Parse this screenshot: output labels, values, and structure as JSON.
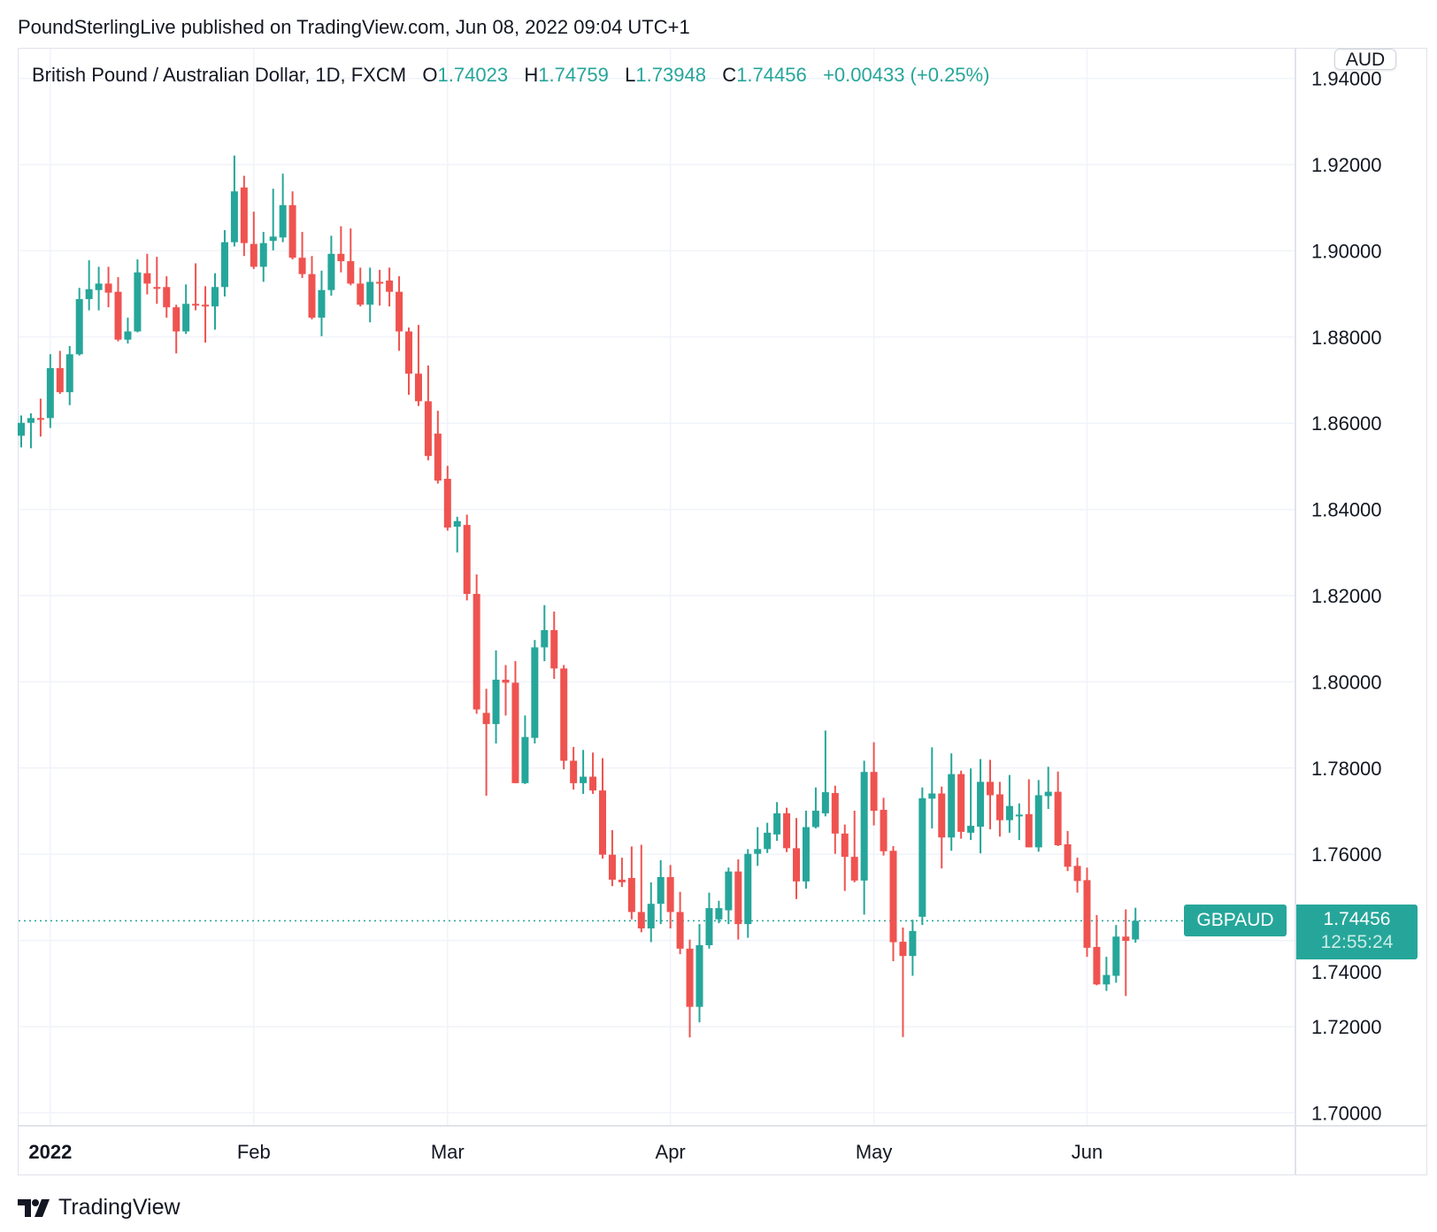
{
  "publisher_line": "PoundSterlingLive published on TradingView.com, Jun 08, 2022 09:04 UTC+1",
  "legend": {
    "title": "British Pound / Australian Dollar, 1D, FXCM",
    "o_label": "O",
    "o_value": "1.74023",
    "h_label": "H",
    "h_value": "1.74759",
    "l_label": "L",
    "l_value": "1.73948",
    "c_label": "C",
    "c_value": "1.74456",
    "change": "+0.00433 (+0.25%)"
  },
  "currency_button": "AUD",
  "symbol_label": "GBPAUD",
  "last_price": "1.74456",
  "countdown": "12:55:24",
  "watermark": "TradingView",
  "colors": {
    "up": "#26a69a",
    "down": "#ef5350",
    "grid": "#f0f3fa",
    "axis_text": "#131722"
  },
  "chart_data": {
    "type": "candlestick",
    "title": "British Pound / Australian Dollar, 1D, FXCM",
    "ylabel": "AUD",
    "ylim": [
      1.695,
      1.94
    ],
    "yticks": [
      "1.94000",
      "1.92000",
      "1.90000",
      "1.88000",
      "1.86000",
      "1.84000",
      "1.82000",
      "1.80000",
      "1.78000",
      "1.76000",
      "1.74000",
      "1.72000",
      "1.70000"
    ],
    "grid": true,
    "last_close": 1.74456,
    "xticks": [
      {
        "index": 3,
        "label": "2022",
        "bold": true
      },
      {
        "index": 24,
        "label": "Feb"
      },
      {
        "index": 44,
        "label": "Mar"
      },
      {
        "index": 67,
        "label": "Apr"
      },
      {
        "index": 88,
        "label": "May"
      },
      {
        "index": 110,
        "label": "Jun"
      }
    ],
    "ohlc_fields": [
      "open",
      "high",
      "low",
      "close"
    ],
    "candles": [
      [
        1.8571,
        1.8618,
        1.8544,
        1.8601
      ],
      [
        1.8601,
        1.8623,
        1.8542,
        1.8612
      ],
      [
        1.8612,
        1.8657,
        1.8569,
        1.861
      ],
      [
        1.8612,
        1.876,
        1.8589,
        1.8728
      ],
      [
        1.8728,
        1.8768,
        1.8668,
        1.8672
      ],
      [
        1.8672,
        1.8779,
        1.8642,
        1.876
      ],
      [
        1.876,
        1.8914,
        1.8757,
        1.8888
      ],
      [
        1.8888,
        1.8978,
        1.8862,
        1.8911
      ],
      [
        1.8909,
        1.8963,
        1.8862,
        1.8924
      ],
      [
        1.8924,
        1.8963,
        1.8869,
        1.8903
      ],
      [
        1.8905,
        1.8939,
        1.879,
        1.8794
      ],
      [
        1.8794,
        1.8845,
        1.8785,
        1.8813
      ],
      [
        1.8813,
        1.898,
        1.8811,
        1.895
      ],
      [
        1.8948,
        1.8993,
        1.8899,
        1.8924
      ],
      [
        1.8916,
        1.8986,
        1.8877,
        1.8914
      ],
      [
        1.8916,
        1.8941,
        1.8845,
        1.8869
      ],
      [
        1.8869,
        1.8875,
        1.8762,
        1.8813
      ],
      [
        1.8813,
        1.8922,
        1.8807,
        1.8877
      ],
      [
        1.8877,
        1.8971,
        1.8862,
        1.8875
      ],
      [
        1.8875,
        1.8918,
        1.8787,
        1.8871
      ],
      [
        1.8871,
        1.8948,
        1.8817,
        1.8916
      ],
      [
        1.8916,
        1.9048,
        1.8894,
        1.902
      ],
      [
        1.902,
        1.9221,
        1.901,
        1.9138
      ],
      [
        1.9147,
        1.9174,
        1.8988,
        1.9018
      ],
      [
        1.9016,
        1.9091,
        1.8958,
        1.8963
      ],
      [
        1.8963,
        1.9044,
        1.8928,
        1.9018
      ],
      [
        1.9023,
        1.9144,
        1.9001,
        1.9033
      ],
      [
        1.9031,
        1.9179,
        1.902,
        1.9106
      ],
      [
        1.9106,
        1.9138,
        1.898,
        1.8984
      ],
      [
        1.8984,
        1.9044,
        1.8937,
        1.8946
      ],
      [
        1.8946,
        1.8988,
        1.8841,
        1.8845
      ],
      [
        1.8845,
        1.8954,
        1.8802,
        1.8909
      ],
      [
        1.8909,
        1.9035,
        1.8896,
        1.8993
      ],
      [
        1.8993,
        1.9057,
        1.895,
        1.8976
      ],
      [
        1.8976,
        1.9052,
        1.892,
        1.8924
      ],
      [
        1.8924,
        1.8961,
        1.8871,
        1.8875
      ],
      [
        1.8875,
        1.8961,
        1.8834,
        1.8928
      ],
      [
        1.8928,
        1.8956,
        1.8873,
        1.8924
      ],
      [
        1.8931,
        1.8961,
        1.8871,
        1.8905
      ],
      [
        1.8905,
        1.8941,
        1.8768,
        1.8813
      ],
      [
        1.8813,
        1.8822,
        1.8666,
        1.8715
      ],
      [
        1.8715,
        1.8828,
        1.864,
        1.8651
      ],
      [
        1.8651,
        1.8734,
        1.8514,
        1.8524
      ],
      [
        1.8576,
        1.8629,
        1.846,
        1.8467
      ],
      [
        1.8471,
        1.8501,
        1.8351,
        1.8358
      ],
      [
        1.836,
        1.8383,
        1.83,
        1.8373
      ],
      [
        1.8364,
        1.8388,
        1.8189,
        1.8204
      ],
      [
        1.8204,
        1.8249,
        1.7926,
        1.7936
      ],
      [
        1.7928,
        1.7984,
        1.7736,
        1.7902
      ],
      [
        1.7902,
        1.8073,
        1.7857,
        1.8005
      ],
      [
        1.8005,
        1.8039,
        1.7922,
        1.7998
      ],
      [
        1.7998,
        1.8048,
        1.7765,
        1.7765
      ],
      [
        1.7765,
        1.7922,
        1.7763,
        1.7872
      ],
      [
        1.787,
        1.8097,
        1.7857,
        1.808
      ],
      [
        1.808,
        1.8178,
        1.8048,
        1.812
      ],
      [
        1.812,
        1.8163,
        1.8007,
        1.8031
      ],
      [
        1.8031,
        1.8039,
        1.7797,
        1.7817
      ],
      [
        1.7817,
        1.7849,
        1.775,
        1.7765
      ],
      [
        1.7765,
        1.7842,
        1.774,
        1.778
      ],
      [
        1.778,
        1.7836,
        1.774,
        1.7748
      ],
      [
        1.7748,
        1.7823,
        1.759,
        1.7599
      ],
      [
        1.7599,
        1.7656,
        1.7526,
        1.7541
      ],
      [
        1.7541,
        1.7592,
        1.7524,
        1.7535
      ],
      [
        1.7545,
        1.7618,
        1.7449,
        1.7466
      ],
      [
        1.7466,
        1.7622,
        1.7419,
        1.7428
      ],
      [
        1.7428,
        1.7535,
        1.7396,
        1.7485
      ],
      [
        1.7485,
        1.7586,
        1.7438,
        1.7547
      ],
      [
        1.7547,
        1.7575,
        1.7428,
        1.7466
      ],
      [
        1.7466,
        1.7513,
        1.7368,
        1.7381
      ],
      [
        1.7381,
        1.7402,
        1.7175,
        1.7246
      ],
      [
        1.7246,
        1.7438,
        1.721,
        1.7389
      ],
      [
        1.7389,
        1.7511,
        1.7381,
        1.7475
      ],
      [
        1.7449,
        1.7492,
        1.744,
        1.7475
      ],
      [
        1.747,
        1.7569,
        1.7438,
        1.756
      ],
      [
        1.756,
        1.7588,
        1.7402,
        1.7438
      ],
      [
        1.7438,
        1.7612,
        1.7406,
        1.7601
      ],
      [
        1.7601,
        1.7663,
        1.7573,
        1.7612
      ],
      [
        1.7612,
        1.7673,
        1.7603,
        1.765
      ],
      [
        1.7646,
        1.7721,
        1.7631,
        1.7695
      ],
      [
        1.7695,
        1.7708,
        1.7605,
        1.7614
      ],
      [
        1.7614,
        1.7684,
        1.7496,
        1.7537
      ],
      [
        1.7537,
        1.7701,
        1.752,
        1.7663
      ],
      [
        1.7663,
        1.7755,
        1.766,
        1.7701
      ],
      [
        1.7695,
        1.7887,
        1.7688,
        1.7744
      ],
      [
        1.7742,
        1.7759,
        1.7601,
        1.7648
      ],
      [
        1.7648,
        1.7669,
        1.7515,
        1.7594
      ],
      [
        1.7594,
        1.7701,
        1.7535,
        1.7539
      ],
      [
        1.7539,
        1.7817,
        1.746,
        1.7791
      ],
      [
        1.7791,
        1.786,
        1.7667,
        1.7701
      ],
      [
        1.7703,
        1.7731,
        1.7597,
        1.7607
      ],
      [
        1.7608,
        1.7619,
        1.7352,
        1.7396
      ],
      [
        1.7397,
        1.743,
        1.7176,
        1.7364
      ],
      [
        1.7364,
        1.7448,
        1.7318,
        1.7422
      ],
      [
        1.7455,
        1.7755,
        1.7436,
        1.773
      ],
      [
        1.7729,
        1.7848,
        1.766,
        1.7741
      ],
      [
        1.7741,
        1.7757,
        1.7567,
        1.7639
      ],
      [
        1.7639,
        1.7834,
        1.7608,
        1.7786
      ],
      [
        1.7786,
        1.7794,
        1.7636,
        1.7652
      ],
      [
        1.765,
        1.7799,
        1.7633,
        1.7666
      ],
      [
        1.7664,
        1.7821,
        1.7602,
        1.7768
      ],
      [
        1.7768,
        1.7819,
        1.7658,
        1.7737
      ],
      [
        1.7739,
        1.7768,
        1.7641,
        1.7679
      ],
      [
        1.7679,
        1.7784,
        1.765,
        1.7712
      ],
      [
        1.7688,
        1.7718,
        1.7633,
        1.7692
      ],
      [
        1.7693,
        1.7774,
        1.7616,
        1.7616
      ],
      [
        1.7616,
        1.7772,
        1.7606,
        1.7737
      ],
      [
        1.7735,
        1.7803,
        1.7705,
        1.7745
      ],
      [
        1.7745,
        1.7792,
        1.7619,
        1.7621
      ],
      [
        1.7623,
        1.7654,
        1.7561,
        1.7571
      ],
      [
        1.7573,
        1.7592,
        1.7511,
        1.7538
      ],
      [
        1.754,
        1.7569,
        1.7362,
        1.7383
      ],
      [
        1.7385,
        1.7459,
        1.7296,
        1.7298
      ],
      [
        1.7298,
        1.7362,
        1.7283,
        1.732
      ],
      [
        1.7318,
        1.7436,
        1.7302,
        1.7409
      ],
      [
        1.7409,
        1.7472,
        1.7271,
        1.7399
      ],
      [
        1.74023,
        1.74759,
        1.73948,
        1.74456
      ]
    ]
  }
}
